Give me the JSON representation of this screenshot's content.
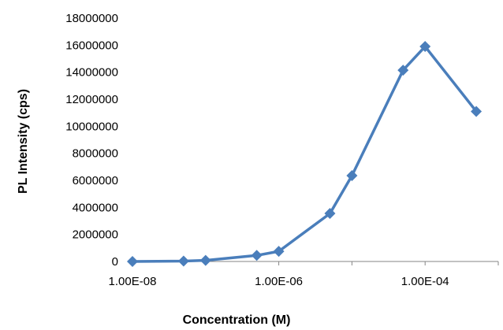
{
  "chart_data": {
    "type": "scatter",
    "title": "",
    "xlabel": "Concentration (M)",
    "ylabel": "PL Intensity (cps)",
    "x_scale": "log",
    "xlim": [
      1e-08,
      0.001
    ],
    "ylim": [
      0,
      18000000
    ],
    "x_ticks": [
      1e-08,
      1e-06,
      0.0001
    ],
    "x_tick_labels": [
      "1.00E-08",
      "1.00E-06",
      "1.00E-04"
    ],
    "y_ticks": [
      0,
      2000000,
      4000000,
      6000000,
      8000000,
      10000000,
      12000000,
      14000000,
      16000000,
      18000000
    ],
    "y_tick_labels": [
      "0",
      "2000000",
      "4000000",
      "6000000",
      "8000000",
      "10000000",
      "12000000",
      "14000000",
      "16000000",
      "18000000"
    ],
    "grid": false,
    "legend": "none",
    "series": [
      {
        "x": [
          1e-08,
          5e-08,
          1e-07,
          5e-07,
          1e-06,
          5e-06,
          1e-05,
          5e-05,
          0.0001,
          0.0005
        ],
        "y": [
          0,
          30000,
          80000,
          450000,
          750000,
          3550000,
          6350000,
          14150000,
          15900000,
          11100000
        ],
        "color": "#4a7ebb",
        "marker": "diamond"
      }
    ]
  }
}
